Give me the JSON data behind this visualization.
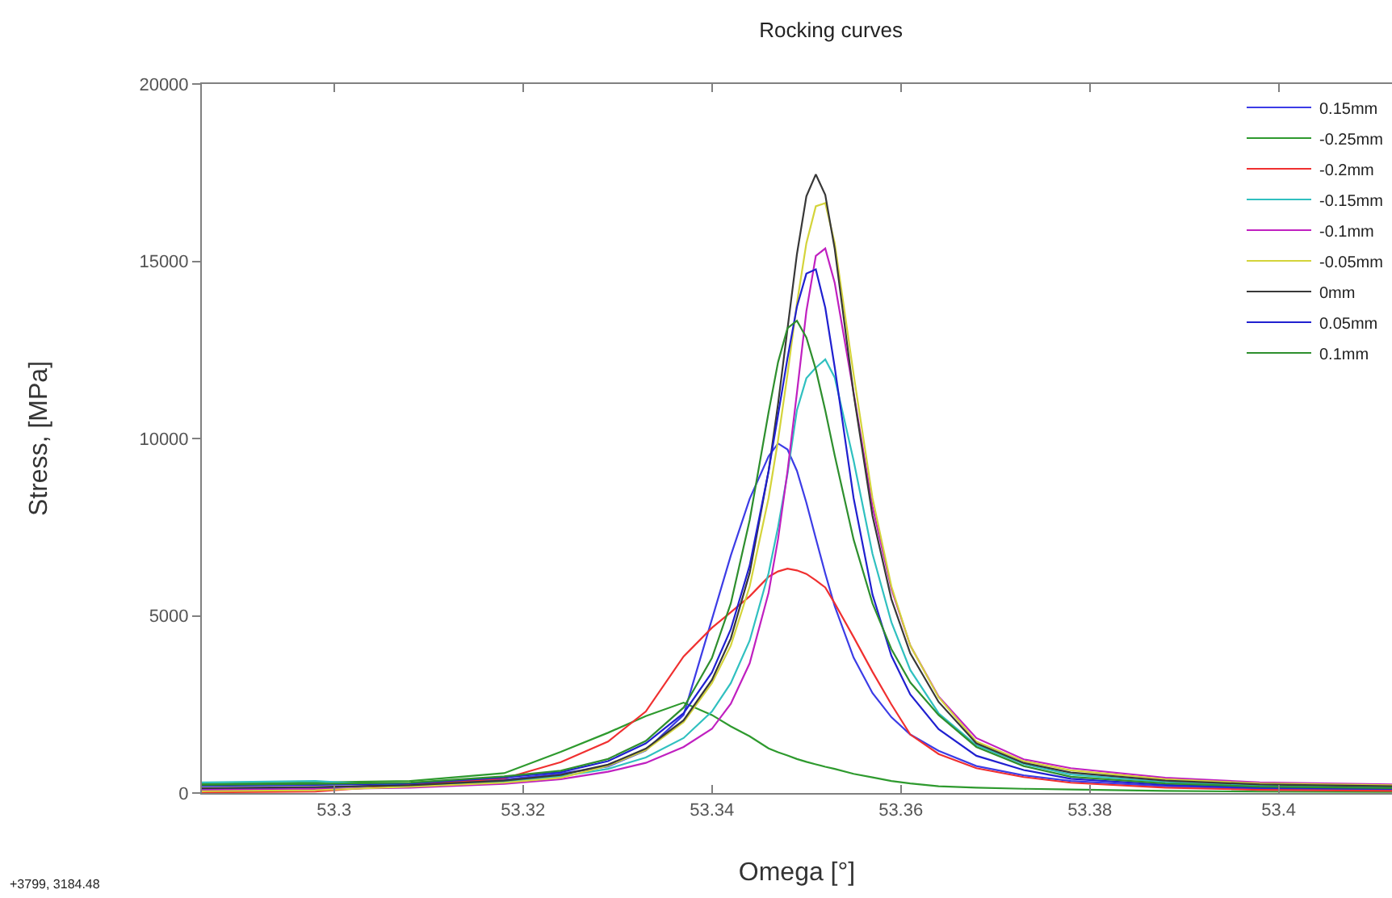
{
  "chart_data": {
    "type": "line",
    "title": "Rocking curves",
    "xlabel": "Omega [°]",
    "ylabel": "Stress, [MPa]",
    "x": [
      53.286,
      53.298,
      53.308,
      53.318,
      53.324,
      53.329,
      53.333,
      53.337,
      53.34,
      53.342,
      53.344,
      53.346,
      53.347,
      53.348,
      53.349,
      53.35,
      53.351,
      53.352,
      53.353,
      53.355,
      53.357,
      53.359,
      53.361,
      53.364,
      53.368,
      53.373,
      53.378,
      53.388,
      53.398,
      53.412
    ],
    "series": [
      {
        "name": "0.15mm",
        "color": "#3c3ce6",
        "values": [
          110,
          140,
          250,
          380,
          550,
          750,
          1200,
          2200,
          4900,
          6700,
          8300,
          9500,
          9860,
          9690,
          9090,
          8190,
          7180,
          6190,
          5270,
          3820,
          2820,
          2140,
          1650,
          1190,
          760,
          500,
          340,
          190,
          120,
          90
        ]
      },
      {
        "name": "-0.25mm",
        "color": "#2e9a2e",
        "values": [
          260,
          300,
          340,
          560,
          1160,
          1700,
          2170,
          2550,
          2200,
          1880,
          1600,
          1260,
          1150,
          1060,
          960,
          880,
          810,
          740,
          680,
          540,
          440,
          340,
          270,
          190,
          150,
          120,
          100,
          60,
          40,
          30
        ]
      },
      {
        "name": "-0.2mm",
        "color": "#f03030",
        "values": [
          20,
          40,
          230,
          410,
          870,
          1450,
          2300,
          3850,
          4660,
          5100,
          5550,
          6100,
          6250,
          6330,
          6280,
          6180,
          6000,
          5800,
          5350,
          4400,
          3420,
          2500,
          1650,
          1100,
          700,
          450,
          290,
          150,
          90,
          60
        ]
      },
      {
        "name": "-0.15mm",
        "color": "#30c0c0",
        "values": [
          300,
          340,
          190,
          320,
          470,
          680,
          1000,
          1550,
          2300,
          3100,
          4300,
          6200,
          7500,
          9000,
          10800,
          11700,
          12000,
          12230,
          11720,
          9380,
          6750,
          4820,
          3470,
          2250,
          1350,
          820,
          520,
          310,
          210,
          170
        ]
      },
      {
        "name": "-0.1mm",
        "color": "#c020c0",
        "values": [
          80,
          110,
          150,
          260,
          390,
          600,
          850,
          1300,
          1810,
          2520,
          3660,
          5650,
          7160,
          9070,
          11290,
          13590,
          15150,
          15360,
          14390,
          11290,
          8080,
          5760,
          4160,
          2720,
          1550,
          950,
          700,
          430,
          300,
          240
        ]
      },
      {
        "name": "-0.05mm",
        "color": "#d4d43a",
        "values": [
          50,
          80,
          180,
          290,
          430,
          770,
          1210,
          2000,
          3100,
          4160,
          5830,
          8320,
          9950,
          11810,
          13810,
          15510,
          16550,
          16640,
          15510,
          11810,
          8320,
          5830,
          4160,
          2700,
          1450,
          900,
          640,
          390,
          270,
          220
        ]
      },
      {
        "name": "0mm",
        "color": "#383838",
        "values": [
          140,
          170,
          220,
          350,
          510,
          800,
          1250,
          2050,
          3190,
          4360,
          6210,
          9080,
          10970,
          13090,
          15200,
          16830,
          17450,
          16870,
          15350,
          11260,
          7820,
          5470,
          3940,
          2570,
          1400,
          850,
          580,
          350,
          240,
          190
        ]
      },
      {
        "name": "0.05mm",
        "color": "#2020d0",
        "values": [
          200,
          230,
          270,
          440,
          590,
          900,
          1400,
          2250,
          3400,
          4620,
          6420,
          9080,
          10660,
          12260,
          13720,
          14650,
          14770,
          13690,
          12010,
          8320,
          5600,
          3870,
          2780,
          1800,
          1050,
          650,
          400,
          230,
          150,
          120
        ]
      },
      {
        "name": "0.1mm",
        "color": "#2e8f2e",
        "values": [
          230,
          260,
          290,
          470,
          630,
          960,
          1470,
          2410,
          3810,
          5350,
          7700,
          10740,
          12150,
          13110,
          13320,
          12850,
          11950,
          10790,
          9520,
          7150,
          5350,
          4060,
          3120,
          2200,
          1300,
          760,
          460,
          270,
          180,
          140
        ]
      }
    ],
    "xlim": [
      53.286,
      53.412
    ],
    "ylim": [
      0,
      20000
    ],
    "xticks": [
      53.3,
      53.32,
      53.34,
      53.36,
      53.38,
      53.4
    ],
    "yticks": [
      0,
      5000,
      10000,
      15000,
      20000
    ],
    "legend": "top right",
    "annotations": [
      "+3799, 3184.48"
    ]
  }
}
